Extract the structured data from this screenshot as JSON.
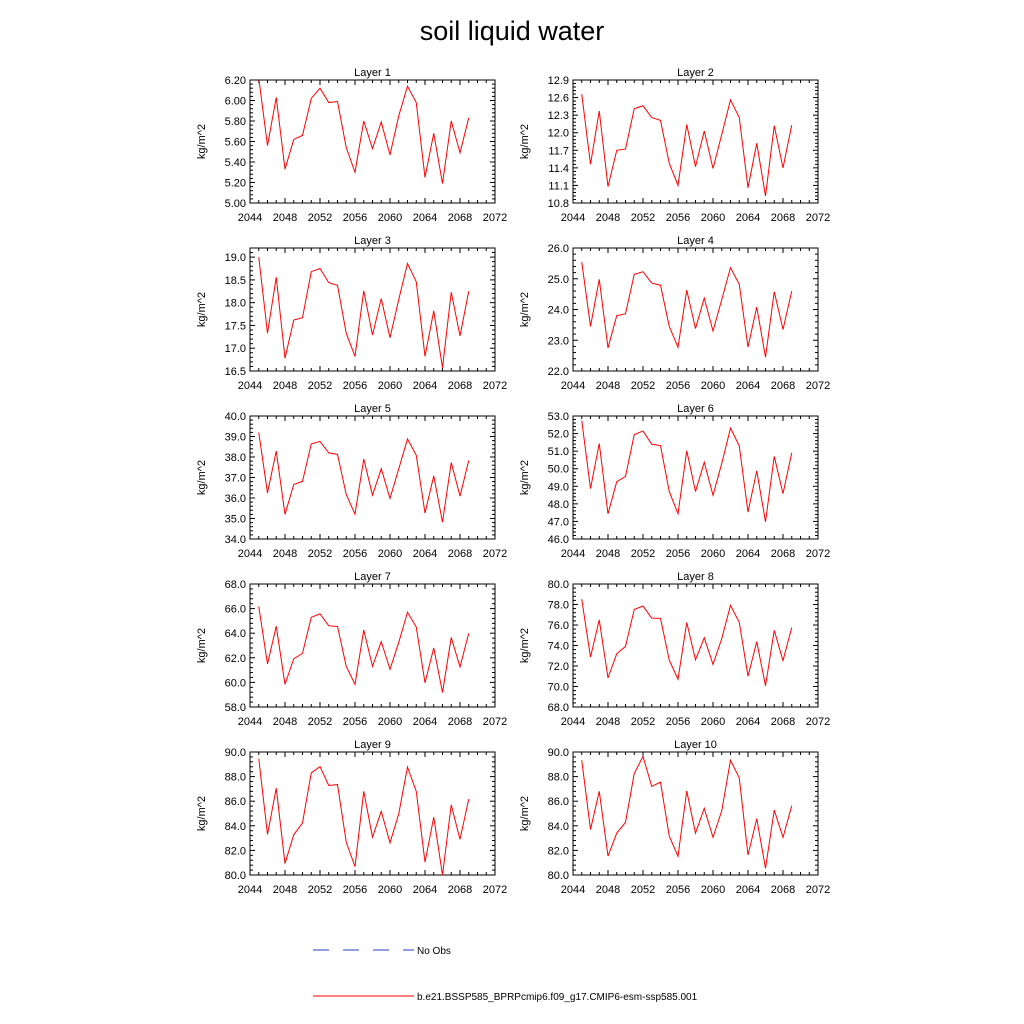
{
  "figure": {
    "title": "soil liquid water",
    "colors": {
      "model": "#ff0000",
      "obs": "#1f3fbf",
      "axis": "#000000"
    }
  },
  "legend": {
    "obs_label": "No Obs",
    "model_label": "b.e21.BSSP585_BPRPcmip6.f09_g17.CMIP6-esm-ssp585.001"
  },
  "chart_data": [
    {
      "type": "line",
      "title": "Layer 1",
      "ylabel": "kg/m^2",
      "xlim": [
        2044,
        2072
      ],
      "ylim": [
        5.0,
        6.2
      ],
      "xticks": [
        "2044",
        "2048",
        "2052",
        "2056",
        "2060",
        "2064",
        "2068",
        "2072"
      ],
      "yticks": [
        "5.00",
        "5.20",
        "5.40",
        "5.60",
        "5.80",
        "6.00",
        "6.20"
      ],
      "x": [
        2045,
        2046,
        2047,
        2048,
        2049,
        2050,
        2051,
        2052,
        2053,
        2054,
        2055,
        2056,
        2057,
        2058,
        2059,
        2060,
        2061,
        2062,
        2063,
        2064,
        2065,
        2066,
        2067,
        2068,
        2069
      ],
      "series": [
        {
          "values": [
            6.22,
            5.56,
            6.03,
            5.33,
            5.62,
            5.66,
            6.02,
            6.12,
            5.98,
            5.99,
            5.54,
            5.3,
            5.8,
            5.53,
            5.79,
            5.47,
            5.85,
            6.14,
            5.98,
            5.25,
            5.68,
            5.19,
            5.8,
            5.49,
            5.83
          ]
        }
      ]
    },
    {
      "type": "line",
      "title": "Layer 2",
      "ylabel": "kg/m^2",
      "xlim": [
        2044,
        2072
      ],
      "ylim": [
        10.8,
        12.9
      ],
      "xticks": [
        "2044",
        "2048",
        "2052",
        "2056",
        "2060",
        "2064",
        "2068",
        "2072"
      ],
      "yticks": [
        "10.8",
        "11.1",
        "11.4",
        "11.7",
        "12.0",
        "12.3",
        "12.6",
        "12.9"
      ],
      "x": [
        2045,
        2046,
        2047,
        2048,
        2049,
        2050,
        2051,
        2052,
        2053,
        2054,
        2055,
        2056,
        2057,
        2058,
        2059,
        2060,
        2061,
        2062,
        2063,
        2064,
        2065,
        2066,
        2067,
        2068,
        2069
      ],
      "series": [
        {
          "values": [
            12.66,
            11.46,
            12.37,
            11.08,
            11.7,
            11.72,
            12.41,
            12.46,
            12.26,
            12.21,
            11.48,
            11.1,
            12.14,
            11.42,
            12.03,
            11.39,
            11.97,
            12.56,
            12.26,
            11.06,
            11.82,
            10.92,
            12.12,
            11.4,
            12.13
          ]
        }
      ]
    },
    {
      "type": "line",
      "title": "Layer 3",
      "ylabel": "kg/m^2",
      "xlim": [
        2044,
        2072
      ],
      "ylim": [
        16.5,
        19.2
      ],
      "xticks": [
        "2044",
        "2048",
        "2052",
        "2056",
        "2060",
        "2064",
        "2068",
        "2072"
      ],
      "yticks": [
        "16.5",
        "17.0",
        "17.5",
        "18.0",
        "18.5",
        "19.0"
      ],
      "x": [
        2045,
        2046,
        2047,
        2048,
        2049,
        2050,
        2051,
        2052,
        2053,
        2054,
        2055,
        2056,
        2057,
        2058,
        2059,
        2060,
        2061,
        2062,
        2063,
        2064,
        2065,
        2066,
        2067,
        2068,
        2069
      ],
      "series": [
        {
          "values": [
            19.0,
            17.33,
            18.56,
            16.78,
            17.62,
            17.67,
            18.68,
            18.75,
            18.44,
            18.38,
            17.33,
            16.82,
            18.26,
            17.29,
            18.09,
            17.23,
            18.07,
            18.86,
            18.46,
            16.82,
            17.82,
            16.57,
            18.23,
            17.27,
            18.25
          ]
        }
      ]
    },
    {
      "type": "line",
      "title": "Layer 4",
      "ylabel": "kg/m^2",
      "xlim": [
        2044,
        2072
      ],
      "ylim": [
        22.0,
        26.0
      ],
      "xticks": [
        "2044",
        "2048",
        "2052",
        "2056",
        "2060",
        "2064",
        "2068",
        "2072"
      ],
      "yticks": [
        "22.0",
        "23.0",
        "24.0",
        "25.0",
        "26.0"
      ],
      "x": [
        2045,
        2046,
        2047,
        2048,
        2049,
        2050,
        2051,
        2052,
        2053,
        2054,
        2055,
        2056,
        2057,
        2058,
        2059,
        2060,
        2061,
        2062,
        2063,
        2064,
        2065,
        2066,
        2067,
        2068,
        2069
      ],
      "series": [
        {
          "values": [
            25.55,
            23.45,
            24.98,
            22.75,
            23.8,
            23.86,
            25.14,
            25.23,
            24.86,
            24.79,
            23.45,
            22.77,
            24.63,
            23.38,
            24.37,
            23.3,
            24.32,
            25.36,
            24.82,
            22.78,
            24.08,
            22.45,
            24.58,
            23.35,
            24.6
          ]
        }
      ]
    },
    {
      "type": "line",
      "title": "Layer 5",
      "ylabel": "kg/m^2",
      "xlim": [
        2044,
        2072
      ],
      "ylim": [
        34.0,
        40.0
      ],
      "xticks": [
        "2044",
        "2048",
        "2052",
        "2056",
        "2060",
        "2064",
        "2068",
        "2072"
      ],
      "yticks": [
        "34.0",
        "35.0",
        "36.0",
        "37.0",
        "38.0",
        "39.0",
        "40.0"
      ],
      "x": [
        2045,
        2046,
        2047,
        2048,
        2049,
        2050,
        2051,
        2052,
        2053,
        2054,
        2055,
        2056,
        2057,
        2058,
        2059,
        2060,
        2061,
        2062,
        2063,
        2064,
        2065,
        2066,
        2067,
        2068,
        2069
      ],
      "series": [
        {
          "values": [
            39.2,
            36.25,
            38.29,
            35.2,
            36.66,
            36.81,
            38.64,
            38.76,
            38.2,
            38.13,
            36.17,
            35.21,
            37.9,
            36.14,
            37.43,
            35.98,
            37.42,
            38.88,
            38.09,
            35.26,
            37.08,
            34.82,
            37.73,
            36.09,
            37.83
          ]
        }
      ]
    },
    {
      "type": "line",
      "title": "Layer 6",
      "ylabel": "kg/m^2",
      "xlim": [
        2044,
        2072
      ],
      "ylim": [
        46.0,
        53.0
      ],
      "xticks": [
        "2044",
        "2048",
        "2052",
        "2056",
        "2060",
        "2064",
        "2068",
        "2072"
      ],
      "yticks": [
        "46.0",
        "47.0",
        "48.0",
        "49.0",
        "50.0",
        "51.0",
        "52.0",
        "53.0"
      ],
      "x": [
        2045,
        2046,
        2047,
        2048,
        2049,
        2050,
        2051,
        2052,
        2053,
        2054,
        2055,
        2056,
        2057,
        2058,
        2059,
        2060,
        2061,
        2062,
        2063,
        2064,
        2065,
        2066,
        2067,
        2068,
        2069
      ],
      "series": [
        {
          "values": [
            52.74,
            48.87,
            51.43,
            47.43,
            49.26,
            49.56,
            51.94,
            52.15,
            51.39,
            51.32,
            48.7,
            47.44,
            51.02,
            48.7,
            50.37,
            48.49,
            50.3,
            52.31,
            51.3,
            47.53,
            49.88,
            46.98,
            50.7,
            48.58,
            50.91
          ]
        }
      ]
    },
    {
      "type": "line",
      "title": "Layer 7",
      "ylabel": "kg/m^2",
      "xlim": [
        2044,
        2072
      ],
      "ylim": [
        58.0,
        68.0
      ],
      "xticks": [
        "2044",
        "2048",
        "2052",
        "2056",
        "2060",
        "2064",
        "2068",
        "2072"
      ],
      "yticks": [
        "58.0",
        "60.0",
        "62.0",
        "64.0",
        "66.0",
        "68.0"
      ],
      "x": [
        2045,
        2046,
        2047,
        2048,
        2049,
        2050,
        2051,
        2052,
        2053,
        2054,
        2055,
        2056,
        2057,
        2058,
        2059,
        2060,
        2061,
        2062,
        2063,
        2064,
        2065,
        2066,
        2067,
        2068,
        2069
      ],
      "series": [
        {
          "values": [
            66.18,
            61.5,
            64.56,
            59.84,
            61.92,
            62.36,
            65.29,
            65.57,
            64.6,
            64.55,
            61.3,
            59.84,
            64.26,
            61.3,
            63.31,
            61.07,
            63.25,
            65.7,
            64.5,
            59.97,
            62.8,
            59.18,
            63.65,
            61.26,
            64.0
          ]
        }
      ]
    },
    {
      "type": "line",
      "title": "Layer 8",
      "ylabel": "kg/m^2",
      "xlim": [
        2044,
        2072
      ],
      "ylim": [
        68.0,
        80.0
      ],
      "xticks": [
        "2044",
        "2048",
        "2052",
        "2056",
        "2060",
        "2064",
        "2068",
        "2072"
      ],
      "yticks": [
        "68.0",
        "70.0",
        "72.0",
        "74.0",
        "76.0",
        "78.0",
        "80.0"
      ],
      "x": [
        2045,
        2046,
        2047,
        2048,
        2049,
        2050,
        2051,
        2052,
        2053,
        2054,
        2055,
        2056,
        2057,
        2058,
        2059,
        2060,
        2061,
        2062,
        2063,
        2064,
        2065,
        2066,
        2067,
        2068,
        2069
      ],
      "series": [
        {
          "values": [
            78.52,
            72.87,
            76.5,
            70.84,
            73.19,
            73.91,
            77.51,
            77.85,
            76.67,
            76.65,
            72.58,
            70.71,
            76.25,
            72.6,
            74.76,
            72.15,
            74.67,
            77.91,
            76.27,
            71.0,
            74.38,
            70.07,
            75.48,
            72.53,
            75.76
          ]
        }
      ]
    },
    {
      "type": "line",
      "title": "Layer 9",
      "ylabel": "kg/m^2",
      "xlim": [
        2044,
        2072
      ],
      "ylim": [
        80.0,
        90.0
      ],
      "xticks": [
        "2044",
        "2048",
        "2052",
        "2056",
        "2060",
        "2064",
        "2068",
        "2072"
      ],
      "yticks": [
        "80.0",
        "82.0",
        "84.0",
        "86.0",
        "88.0",
        "90.0"
      ],
      "x": [
        2045,
        2046,
        2047,
        2048,
        2049,
        2050,
        2051,
        2052,
        2053,
        2054,
        2055,
        2056,
        2057,
        2058,
        2059,
        2060,
        2061,
        2062,
        2063,
        2064,
        2065,
        2066,
        2067,
        2068,
        2069
      ],
      "series": [
        {
          "values": [
            89.46,
            83.3,
            87.06,
            80.93,
            83.27,
            84.23,
            88.3,
            88.81,
            87.28,
            87.35,
            82.67,
            80.68,
            86.8,
            83.08,
            85.18,
            82.62,
            84.98,
            88.78,
            86.8,
            81.04,
            84.7,
            80.0,
            85.7,
            82.9,
            86.17
          ]
        }
      ]
    },
    {
      "type": "line",
      "title": "Layer 10",
      "ylabel": "kg/m^2",
      "xlim": [
        2044,
        2072
      ],
      "ylim": [
        80.0,
        90.0
      ],
      "xticks": [
        "2044",
        "2048",
        "2052",
        "2056",
        "2060",
        "2064",
        "2068",
        "2072"
      ],
      "yticks": [
        "80.0",
        "82.0",
        "84.0",
        "86.0",
        "88.0",
        "90.0"
      ],
      "x": [
        2045,
        2046,
        2047,
        2048,
        2049,
        2050,
        2051,
        2052,
        2053,
        2054,
        2055,
        2056,
        2057,
        2058,
        2059,
        2060,
        2061,
        2062,
        2063,
        2064,
        2065,
        2066,
        2067,
        2068,
        2069
      ],
      "series": [
        {
          "values": [
            89.33,
            83.7,
            86.8,
            81.54,
            83.4,
            84.28,
            88.25,
            89.64,
            87.2,
            87.55,
            83.16,
            81.52,
            86.83,
            83.4,
            85.42,
            83.06,
            85.22,
            89.33,
            87.9,
            81.62,
            84.58,
            80.55,
            85.28,
            83.06,
            85.63
          ]
        }
      ]
    }
  ]
}
